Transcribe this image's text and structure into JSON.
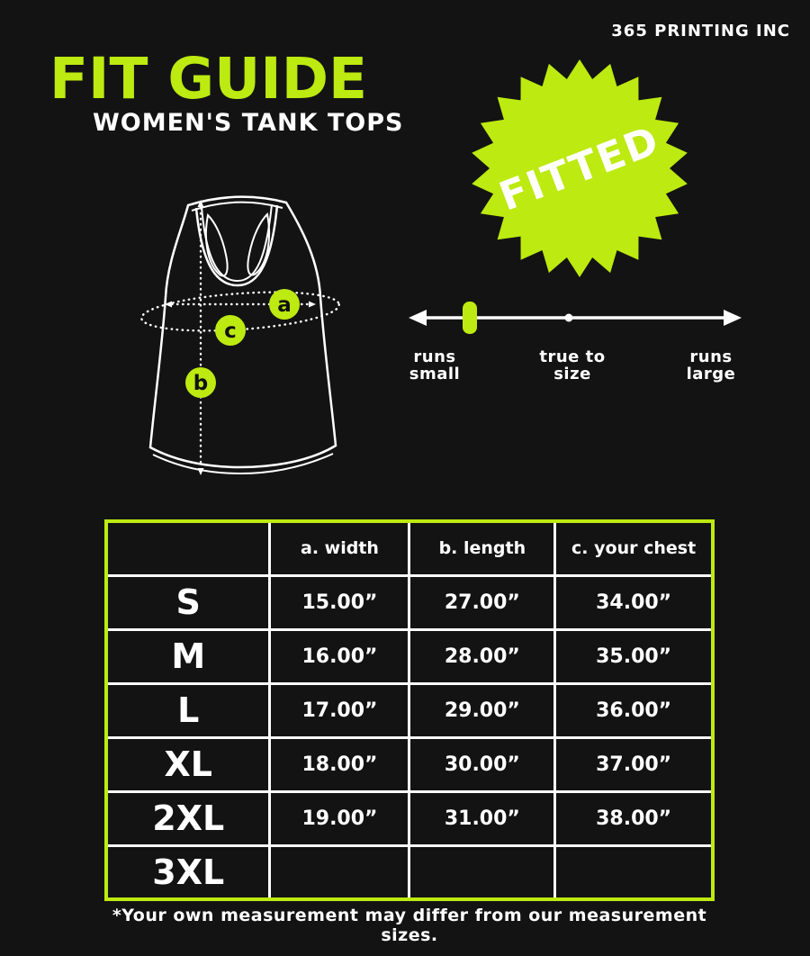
{
  "colors": {
    "accent": "#bdea10",
    "background": "#131313",
    "text": "#ffffff"
  },
  "brand": "365 PRINTING INC",
  "header": {
    "title": "FIT GUIDE",
    "subtitle": "WOMEN'S TANK TOPS"
  },
  "badge": {
    "label": "FITTED"
  },
  "diagram": {
    "markers": {
      "a": "a",
      "b": "b",
      "c": "c"
    }
  },
  "fit_scale": {
    "left": [
      "runs",
      "small"
    ],
    "center": [
      "true to",
      "size"
    ],
    "right": [
      "runs",
      "large"
    ]
  },
  "table": {
    "col_headers": [
      "a. width",
      "b. length",
      "c. your chest"
    ],
    "rows": [
      {
        "size": "S",
        "cells": [
          "15.00”",
          "27.00”",
          "34.00”"
        ]
      },
      {
        "size": "M",
        "cells": [
          "16.00”",
          "28.00”",
          "35.00”"
        ]
      },
      {
        "size": "L",
        "cells": [
          "17.00”",
          "29.00”",
          "36.00”"
        ]
      },
      {
        "size": "XL",
        "cells": [
          "18.00”",
          "30.00”",
          "37.00”"
        ]
      },
      {
        "size": "2XL",
        "cells": [
          "19.00”",
          "31.00”",
          "38.00”"
        ]
      },
      {
        "size": "3XL",
        "cells": [
          "",
          "",
          ""
        ]
      }
    ]
  },
  "footnote": "*Your own measurement may differ from our measurement sizes."
}
